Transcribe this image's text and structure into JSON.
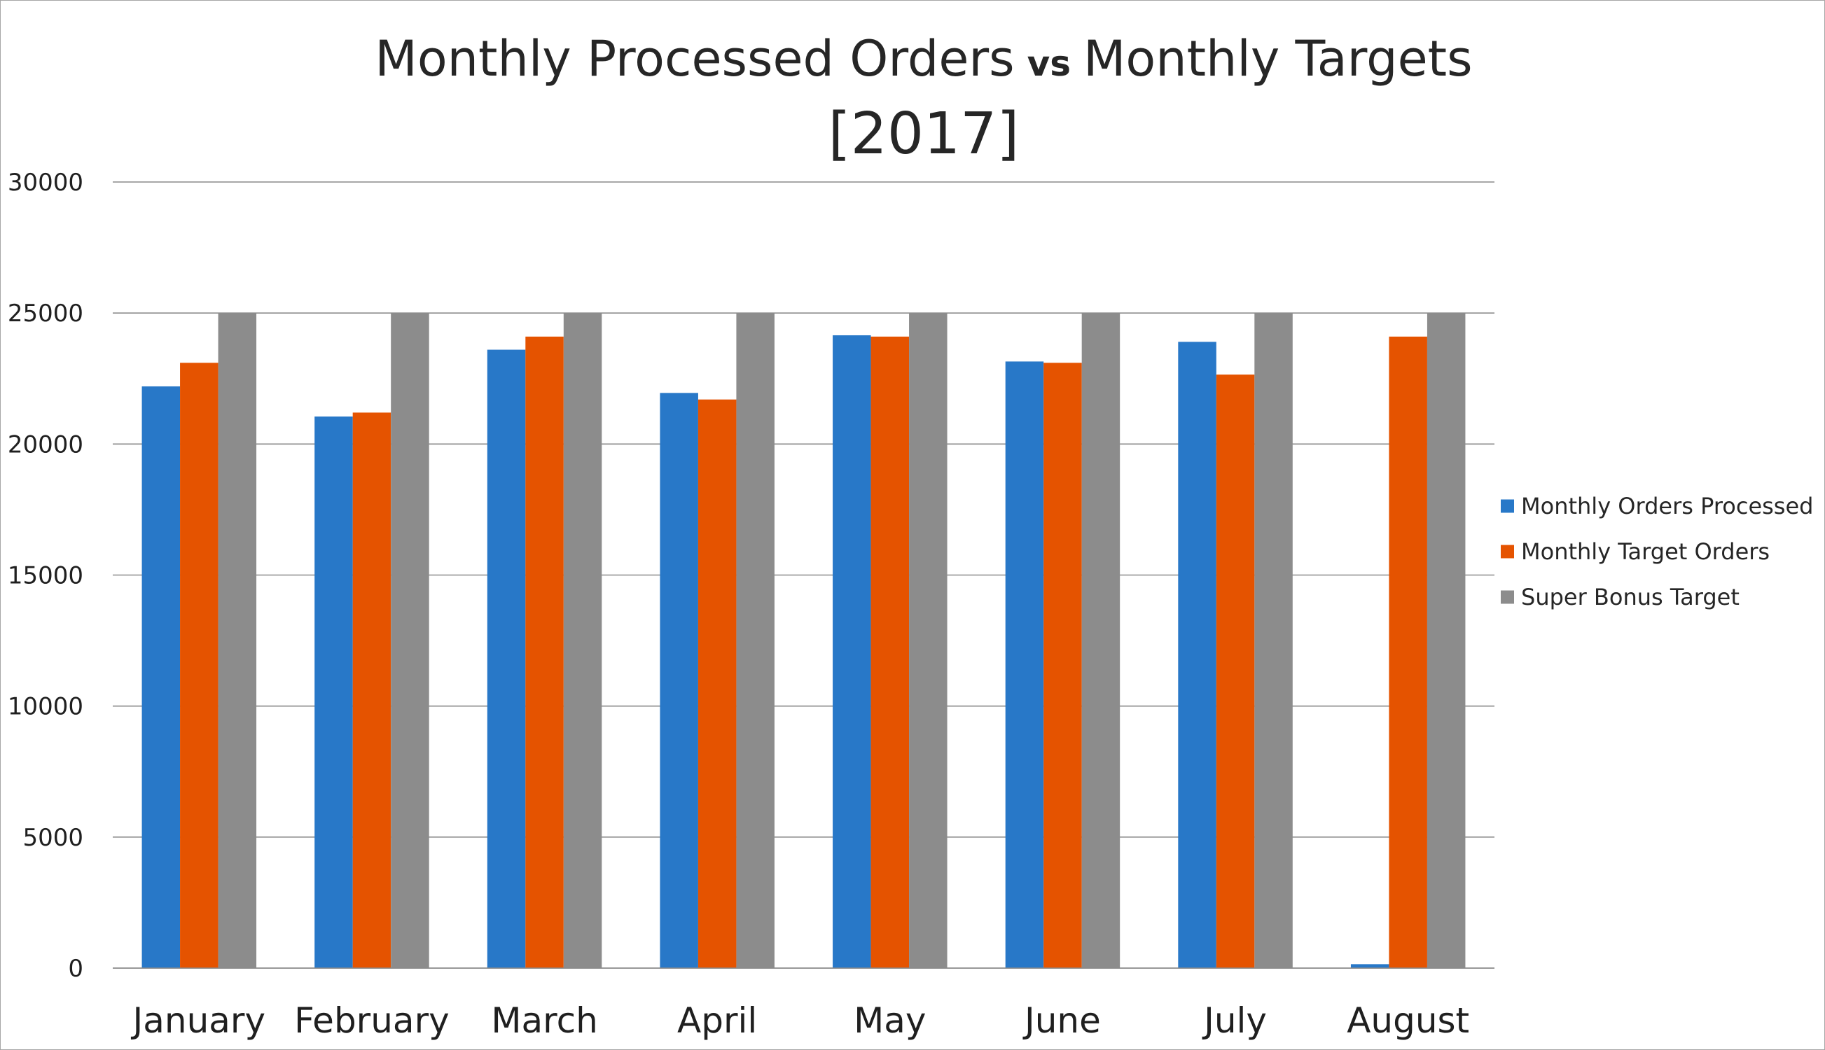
{
  "chart_data": {
    "type": "bar",
    "title": {
      "part1": "Monthly Processed Orders",
      "vs": "vs",
      "part2": "Monthly Targets",
      "line2": "[2017]"
    },
    "xlabel": "",
    "ylabel": "",
    "ylim": [
      0,
      30000
    ],
    "yticks": [
      0,
      5000,
      10000,
      15000,
      20000,
      25000,
      30000
    ],
    "grid": true,
    "legend_position": "right",
    "categories": [
      "January",
      "February",
      "March",
      "April",
      "May",
      "June",
      "July",
      "August"
    ],
    "series": [
      {
        "name": "Monthly Orders Processed",
        "color": "#2878c8",
        "values": [
          22200,
          21050,
          23600,
          21950,
          24150,
          23150,
          23900,
          150
        ]
      },
      {
        "name": "Monthly Target Orders",
        "color": "#e55300",
        "values": [
          23100,
          21200,
          24100,
          21700,
          24100,
          23100,
          22650,
          24100
        ]
      },
      {
        "name": "Super Bonus Target",
        "color": "#8c8c8c",
        "values": [
          25000,
          25000,
          25000,
          25000,
          25000,
          25000,
          25000,
          25000
        ]
      }
    ]
  }
}
